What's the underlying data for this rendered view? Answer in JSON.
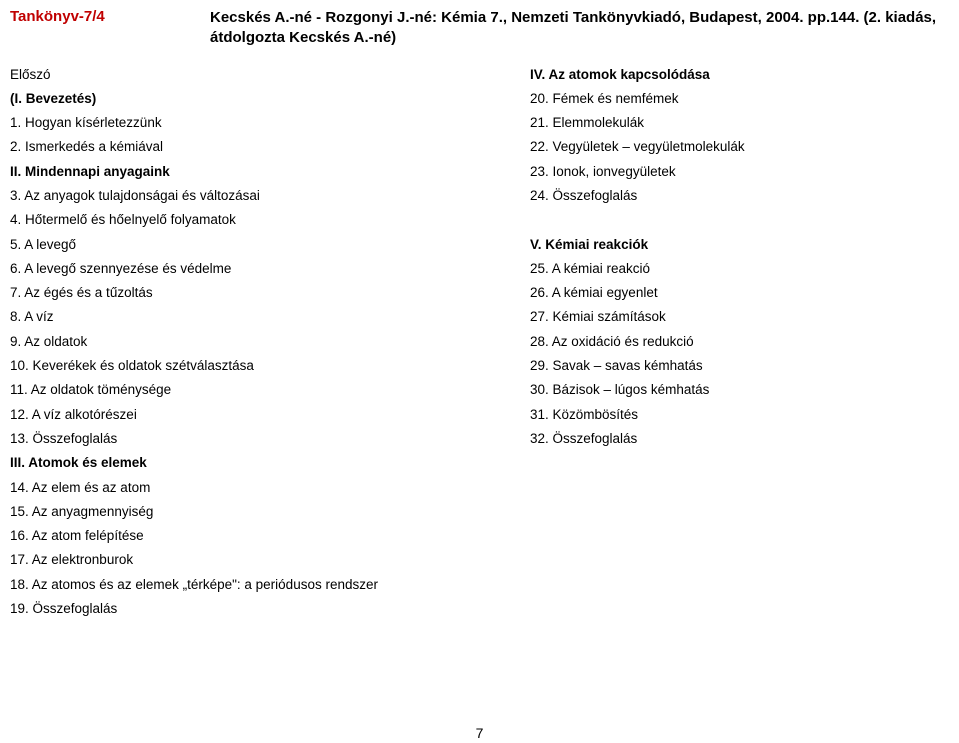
{
  "header": {
    "book_tag": "Tankönyv-7/4",
    "citation_line1": "Kecskés A.-né - Rozgonyi J.-né: Kémia 7., Nemzeti Tankönyvkiadó, Budapest, 2004. pp.144. (2. kiadás,",
    "citation_line2": "átdolgozta Kecskés A.-né)"
  },
  "left": {
    "l0": "Előszó",
    "l1": "(I. Bevezetés)",
    "l2": "1. Hogyan kísérletezzünk",
    "l3": "2. Ismerkedés a kémiával",
    "l4": "II. Mindennapi anyagaink",
    "l5": "3. Az anyagok tulajdonságai és változásai",
    "l6": "4. Hőtermelő és hőelnyelő folyamatok",
    "l7": "5. A levegő",
    "l8": "6. A levegő szennyezése és védelme",
    "l9": "7. Az égés és a tűzoltás",
    "l10": "8. A víz",
    "l11": "9. Az oldatok",
    "l12": "10. Keverékek és oldatok szétválasztása",
    "l13": "11. Az oldatok töménysége",
    "l14": "12. A víz alkotórészei",
    "l15": "13. Összefoglalás",
    "l16": "III. Atomok és elemek",
    "l17": "14. Az elem és az atom",
    "l18": "15. Az anyagmennyiség",
    "l19": "16. Az atom felépítése",
    "l20": "17. Az elektronburok",
    "l21": "18. Az atomos és az elemek „térképe\": a periódusos rendszer",
    "l22": "19. Összefoglalás"
  },
  "right": {
    "r0": "IV. Az atomok kapcsolódása",
    "r1": "20. Fémek és nemfémek",
    "r2": "21. Elemmolekulák",
    "r3": "22. Vegyületek – vegyületmolekulák",
    "r4": "23. Ionok, ionvegyületek",
    "r5": "24. Összefoglalás",
    "r6": "V. Kémiai reakciók",
    "r7": "25. A kémiai reakció",
    "r8": "26. A kémiai egyenlet",
    "r9": "27. Kémiai számítások",
    "r10": "28. Az oxidáció és redukció",
    "r11": "29. Savak – savas kémhatás",
    "r12": "30. Bázisok – lúgos kémhatás",
    "r13": "31. Közömbösítés",
    "r14": "32. Összefoglalás"
  },
  "page_number": "7"
}
